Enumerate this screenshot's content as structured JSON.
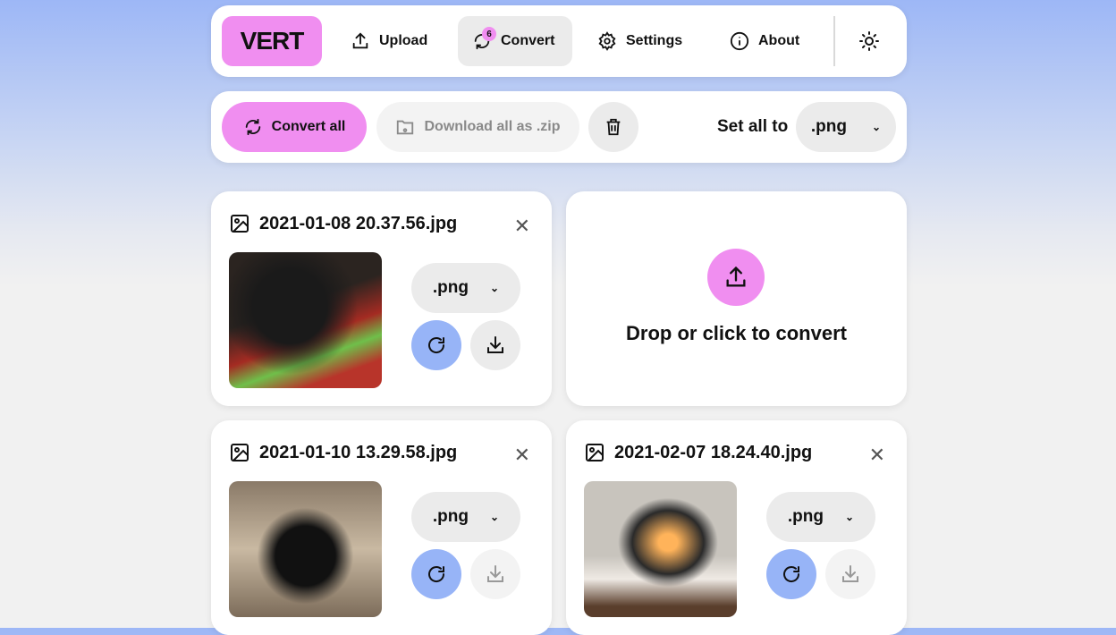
{
  "nav": {
    "logo": "VERT",
    "items": [
      {
        "label": "Upload",
        "icon": "upload-icon"
      },
      {
        "label": "Convert",
        "icon": "refresh-icon",
        "badge": "6",
        "active": true
      },
      {
        "label": "Settings",
        "icon": "gear-icon"
      },
      {
        "label": "About",
        "icon": "info-icon"
      }
    ],
    "theme_icon": "sun-icon"
  },
  "toolbar": {
    "convert_all": "Convert all",
    "download_zip": "Download all as .zip",
    "set_all_label": "Set all to",
    "set_all_value": ".png"
  },
  "files": [
    {
      "name": "2021-01-08 20.37.56.jpg",
      "format": ".png",
      "download_enabled": true
    },
    {
      "name": "2021-01-10 13.29.58.jpg",
      "format": ".png",
      "download_enabled": false
    },
    {
      "name": "2021-02-07 18.24.40.jpg",
      "format": ".png",
      "download_enabled": false
    }
  ],
  "dropzone": {
    "label": "Drop or click to convert"
  },
  "colors": {
    "accent_pink": "#f08ef0",
    "accent_blue": "#97b4f7"
  }
}
